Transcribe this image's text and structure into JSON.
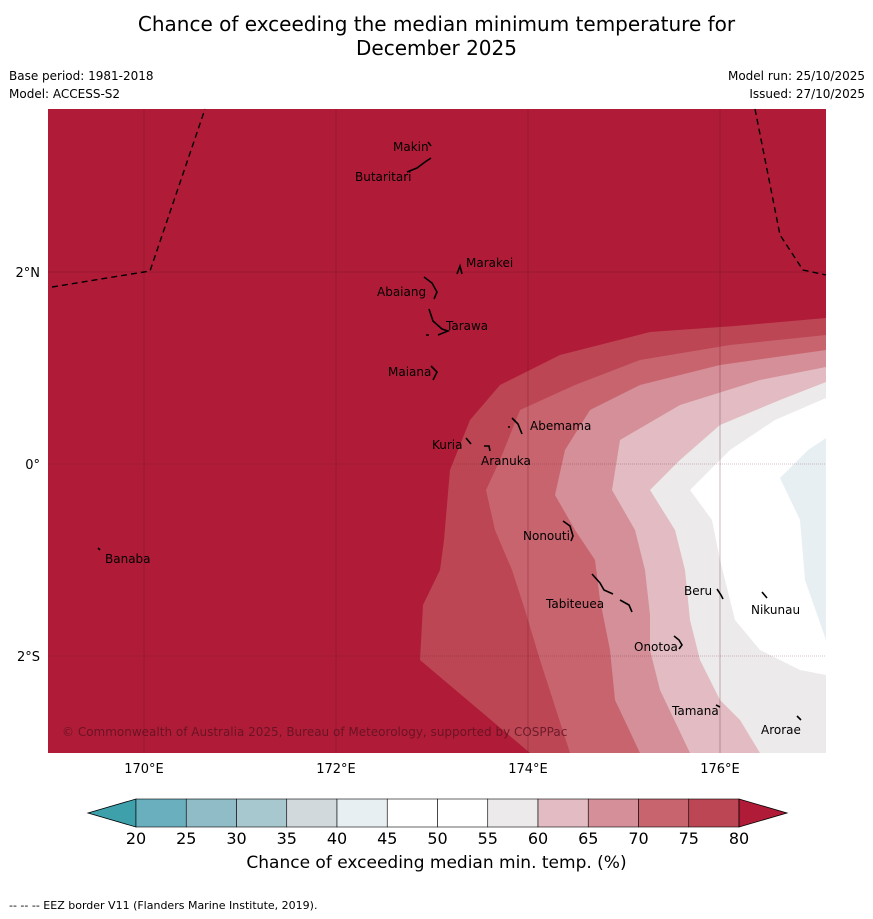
{
  "title": {
    "line1": "Chance of exceeding the median minimum temperature for",
    "line2": "December 2025"
  },
  "meta_left": {
    "base_period": "Base period: 1981-2018",
    "model": "Model: ACCESS-S2"
  },
  "meta_right": {
    "model_run": "Model run: 25/10/2025",
    "issued": "Issued: 27/10/2025"
  },
  "map": {
    "lon_ticks": [
      "170°E",
      "172°E",
      "174°E",
      "176°E"
    ],
    "lat_ticks": [
      "2°N",
      "0°",
      "2°S"
    ],
    "copyright": "© Commonwealth of Australia 2025, Bureau of Meteorology, supported by COSPPac",
    "islands": [
      "Makin",
      "Butaritari",
      "Marakei",
      "Abaiang",
      "Tarawa",
      "Maiana",
      "Abemama",
      "Kuria",
      "Aranuka",
      "Nonouti",
      "Banaba",
      "Tabiteuea",
      "Beru",
      "Nikunau",
      "Onotoa",
      "Tamana",
      "Arorae"
    ]
  },
  "colorbar": {
    "ticks": [
      "20",
      "25",
      "30",
      "35",
      "40",
      "45",
      "50",
      "55",
      "60",
      "65",
      "70",
      "75",
      "80"
    ],
    "title": "Chance of exceeding median min. temp. (%)",
    "colors": {
      "below20": "#3ea0ab",
      "b20_25": "#6aafbd",
      "b25_30": "#8fbcc7",
      "b30_35": "#a8c8cf",
      "b35_40": "#d2d9dd",
      "b40_45": "#e8eff2",
      "b45_50": "#ffffff",
      "b50_55": "#ffffff",
      "b55_60": "#edeaeb",
      "b60_65": "#e2bcc2",
      "b65_70": "#d58f98",
      "b70_75": "#c8646e",
      "b75_80": "#bd4654",
      "above80": "#b01c37"
    }
  },
  "footnote": "-- -- -- EEZ border V11 (Flanders Marine Institute, 2019)."
}
